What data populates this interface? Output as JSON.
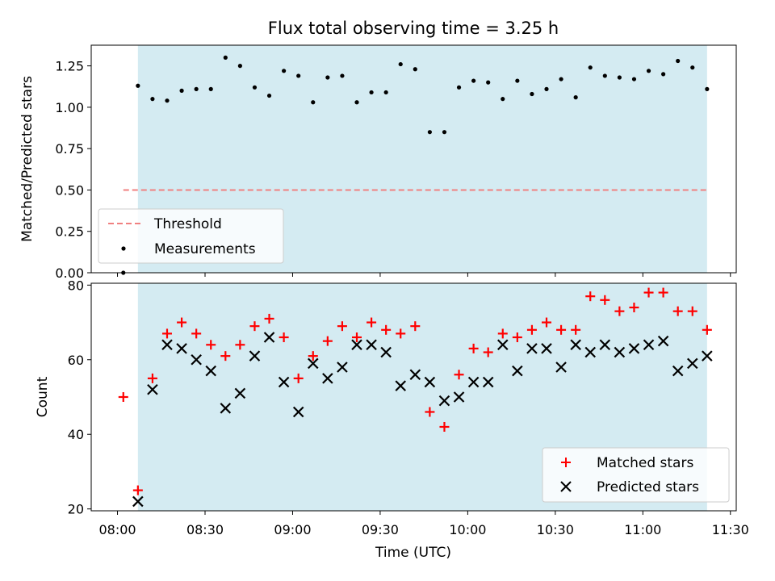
{
  "chart_data": [
    {
      "type": "scatter",
      "title": "Flux total observing time = 3.25 h",
      "xlabel": "",
      "ylabel": "Matched/Predicted stars",
      "ylim": [
        0,
        1.375
      ],
      "yticks": [
        "0.00",
        "0.25",
        "0.50",
        "0.75",
        "1.00",
        "1.25"
      ],
      "xlim": [
        "07:51",
        "11:32"
      ],
      "shaded_window": [
        "08:07",
        "11:22"
      ],
      "shaded_color": "#add8e6",
      "threshold": {
        "label": "Threshold",
        "value": 0.5,
        "x_range": [
          "08:02",
          "11:22"
        ],
        "color": "#f08080",
        "style": "dashed"
      },
      "series": [
        {
          "name": "Measurements",
          "marker": "dot",
          "color": "#000000",
          "points": [
            [
              "08:02",
              0.0
            ],
            [
              "08:07",
              1.13
            ],
            [
              "08:12",
              1.05
            ],
            [
              "08:17",
              1.04
            ],
            [
              "08:22",
              1.1
            ],
            [
              "08:27",
              1.11
            ],
            [
              "08:32",
              1.11
            ],
            [
              "08:37",
              1.3
            ],
            [
              "08:42",
              1.25
            ],
            [
              "08:47",
              1.12
            ],
            [
              "08:52",
              1.07
            ],
            [
              "08:57",
              1.22
            ],
            [
              "09:02",
              1.19
            ],
            [
              "09:07",
              1.03
            ],
            [
              "09:12",
              1.18
            ],
            [
              "09:17",
              1.19
            ],
            [
              "09:22",
              1.03
            ],
            [
              "09:27",
              1.09
            ],
            [
              "09:32",
              1.09
            ],
            [
              "09:37",
              1.26
            ],
            [
              "09:42",
              1.23
            ],
            [
              "09:47",
              0.85
            ],
            [
              "09:52",
              0.85
            ],
            [
              "09:57",
              1.12
            ],
            [
              "10:02",
              1.16
            ],
            [
              "10:07",
              1.15
            ],
            [
              "10:12",
              1.05
            ],
            [
              "10:17",
              1.16
            ],
            [
              "10:22",
              1.08
            ],
            [
              "10:27",
              1.11
            ],
            [
              "10:32",
              1.17
            ],
            [
              "10:37",
              1.06
            ],
            [
              "10:42",
              1.24
            ],
            [
              "10:47",
              1.19
            ],
            [
              "10:52",
              1.18
            ],
            [
              "10:57",
              1.17
            ],
            [
              "11:02",
              1.22
            ],
            [
              "11:07",
              1.2
            ],
            [
              "11:12",
              1.28
            ],
            [
              "11:17",
              1.24
            ],
            [
              "11:22",
              1.11
            ]
          ]
        }
      ],
      "legend": {
        "position": "lower-left",
        "entries": [
          "Threshold",
          "Measurements"
        ]
      }
    },
    {
      "type": "scatter",
      "title": "",
      "xlabel": "Time (UTC)",
      "ylabel": "Count",
      "ylim": [
        19.5,
        80.5
      ],
      "yticks": [
        "20",
        "40",
        "60",
        "80"
      ],
      "xlim": [
        "07:51",
        "11:32"
      ],
      "xticks": [
        "08:00",
        "08:30",
        "09:00",
        "09:30",
        "10:00",
        "10:30",
        "11:00",
        "11:30"
      ],
      "shaded_window": [
        "08:07",
        "11:22"
      ],
      "shaded_color": "#add8e6",
      "series": [
        {
          "name": "Matched stars",
          "marker": "plus",
          "color": "#ff0000",
          "points": [
            [
              "08:02",
              50
            ],
            [
              "08:07",
              25
            ],
            [
              "08:12",
              55
            ],
            [
              "08:17",
              67
            ],
            [
              "08:22",
              70
            ],
            [
              "08:27",
              67
            ],
            [
              "08:32",
              64
            ],
            [
              "08:37",
              61
            ],
            [
              "08:42",
              64
            ],
            [
              "08:47",
              69
            ],
            [
              "08:52",
              71
            ],
            [
              "08:57",
              66
            ],
            [
              "09:02",
              55
            ],
            [
              "09:07",
              61
            ],
            [
              "09:12",
              65
            ],
            [
              "09:17",
              69
            ],
            [
              "09:22",
              66
            ],
            [
              "09:27",
              70
            ],
            [
              "09:32",
              68
            ],
            [
              "09:37",
              67
            ],
            [
              "09:42",
              69
            ],
            [
              "09:47",
              46
            ],
            [
              "09:52",
              42
            ],
            [
              "09:57",
              56
            ],
            [
              "10:02",
              63
            ],
            [
              "10:07",
              62
            ],
            [
              "10:12",
              67
            ],
            [
              "10:17",
              66
            ],
            [
              "10:22",
              68
            ],
            [
              "10:27",
              70
            ],
            [
              "10:32",
              68
            ],
            [
              "10:37",
              68
            ],
            [
              "10:42",
              77
            ],
            [
              "10:47",
              76
            ],
            [
              "10:52",
              73
            ],
            [
              "10:57",
              74
            ],
            [
              "11:02",
              78
            ],
            [
              "11:07",
              78
            ],
            [
              "11:12",
              73
            ],
            [
              "11:17",
              73
            ],
            [
              "11:22",
              68
            ]
          ]
        },
        {
          "name": "Predicted stars",
          "marker": "x",
          "color": "#000000",
          "points": [
            [
              "08:07",
              22
            ],
            [
              "08:12",
              52
            ],
            [
              "08:17",
              64
            ],
            [
              "08:22",
              63
            ],
            [
              "08:27",
              60
            ],
            [
              "08:32",
              57
            ],
            [
              "08:37",
              47
            ],
            [
              "08:42",
              51
            ],
            [
              "08:47",
              61
            ],
            [
              "08:52",
              66
            ],
            [
              "08:57",
              54
            ],
            [
              "09:02",
              46
            ],
            [
              "09:07",
              59
            ],
            [
              "09:12",
              55
            ],
            [
              "09:17",
              58
            ],
            [
              "09:22",
              64
            ],
            [
              "09:27",
              64
            ],
            [
              "09:32",
              62
            ],
            [
              "09:37",
              53
            ],
            [
              "09:42",
              56
            ],
            [
              "09:47",
              54
            ],
            [
              "09:52",
              49
            ],
            [
              "09:57",
              50
            ],
            [
              "10:02",
              54
            ],
            [
              "10:07",
              54
            ],
            [
              "10:12",
              64
            ],
            [
              "10:17",
              57
            ],
            [
              "10:22",
              63
            ],
            [
              "10:27",
              63
            ],
            [
              "10:32",
              58
            ],
            [
              "10:37",
              64
            ],
            [
              "10:42",
              62
            ],
            [
              "10:47",
              64
            ],
            [
              "10:52",
              62
            ],
            [
              "10:57",
              63
            ],
            [
              "11:02",
              64
            ],
            [
              "11:07",
              65
            ],
            [
              "11:12",
              57
            ],
            [
              "11:17",
              59
            ],
            [
              "11:22",
              61
            ]
          ]
        }
      ],
      "legend": {
        "position": "lower-right",
        "entries": [
          "Matched stars",
          "Predicted stars"
        ]
      }
    }
  ]
}
